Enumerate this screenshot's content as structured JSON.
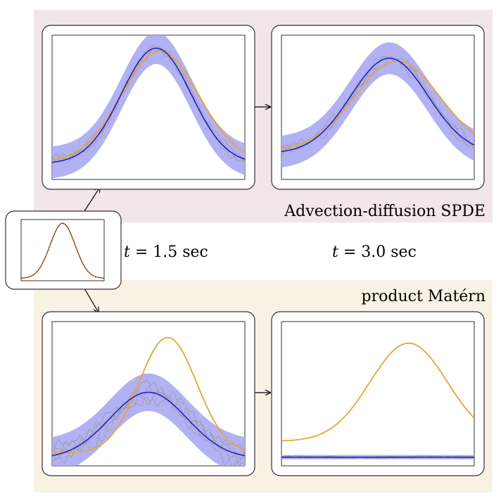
{
  "labels": {
    "spde_title": "Advection-diffusion SPDE",
    "matern_title": "product Matérn",
    "t1_var": "t",
    "t1_rest": " = 1.5 sec",
    "t2_var": "t",
    "t2_rest": " = 3.0 sec"
  },
  "colors": {
    "spde_bg": "#f2e6ea",
    "matern_bg": "#f9f1e4",
    "band": "#a9a9f2",
    "mean": "#1a1acc",
    "truth": "#e8a534",
    "initial": "#c8641e",
    "samples": "#9a9a9a"
  },
  "chart_data": [
    {
      "name": "initial",
      "type": "line",
      "series": [
        {
          "role": "truth",
          "peak": 0.9,
          "base": 0.04,
          "center": 0.5,
          "width": 0.15
        },
        {
          "role": "mean",
          "peak": 0.9,
          "base": 0.04,
          "center": 0.5,
          "width": 0.15
        }
      ]
    },
    {
      "name": "spde-t1.5",
      "type": "line",
      "series": [
        {
          "role": "mean",
          "peak": 0.8,
          "base": 0.11,
          "center": 0.54,
          "width": 0.18,
          "band": 0.11
        },
        {
          "role": "truth",
          "peak": 0.77,
          "base": 0.12,
          "center": 0.56,
          "width": 0.2
        },
        {
          "role": "samples",
          "count": 3,
          "noise": 0.035
        }
      ]
    },
    {
      "name": "spde-t3.0",
      "type": "line",
      "series": [
        {
          "role": "mean",
          "peak": 0.66,
          "base": 0.18,
          "center": 0.56,
          "width": 0.2,
          "band": 0.11
        },
        {
          "role": "truth",
          "peak": 0.62,
          "base": 0.2,
          "center": 0.6,
          "width": 0.22
        },
        {
          "role": "samples",
          "count": 3,
          "noise": 0.04
        }
      ]
    },
    {
      "name": "matern-t1.5",
      "type": "line",
      "series": [
        {
          "role": "mean",
          "peak": 0.46,
          "base": 0.05,
          "center": 0.5,
          "width": 0.2,
          "band": 0.13
        },
        {
          "role": "truth",
          "peak": 0.8,
          "base": 0.09,
          "center": 0.6,
          "width": 0.15
        },
        {
          "role": "samples",
          "count": 4,
          "noise": 0.07
        }
      ]
    },
    {
      "name": "matern-t3.0",
      "type": "line",
      "series": [
        {
          "role": "mean",
          "peak": 0.0,
          "base": 0.06,
          "center": 0.5,
          "width": 0.2,
          "band": 0.015
        },
        {
          "role": "truth",
          "peak": 0.68,
          "base": 0.17,
          "center": 0.66,
          "width": 0.2
        },
        {
          "role": "samples",
          "count": 3,
          "noise": 0.008
        }
      ]
    }
  ]
}
